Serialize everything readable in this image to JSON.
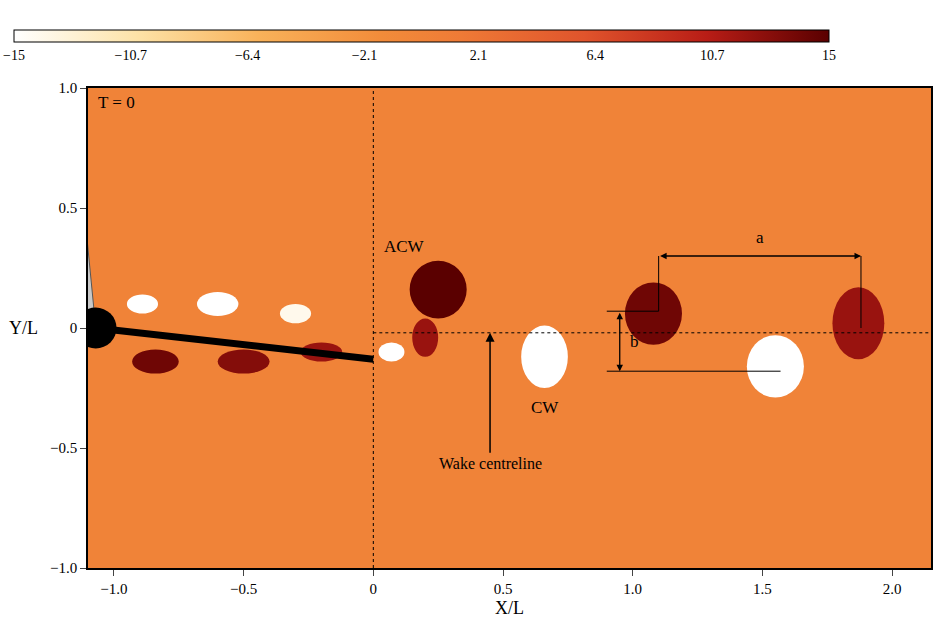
{
  "chart_data": {
    "type": "contour",
    "x_label": "X/L",
    "y_label": "Y/L",
    "xlim": [
      -1.1,
      2.15
    ],
    "ylim": [
      -1,
      1
    ],
    "xticks": [
      {
        "value": -1,
        "label": "−1.0"
      },
      {
        "value": -0.5,
        "label": "−0.5"
      },
      0,
      0.5,
      {
        "value": 1,
        "label": "1.0"
      },
      1.5,
      {
        "value": 2,
        "label": "2.0"
      }
    ],
    "yticks": [
      {
        "value": -1,
        "label": "−1.0"
      },
      {
        "value": -0.5,
        "label": "−0.5"
      },
      0,
      0.5,
      {
        "value": 1,
        "label": "1.0"
      }
    ],
    "colorbar": {
      "range": [
        -15,
        15
      ],
      "ticks": [
        {
          "value": -15,
          "label": "−15"
        },
        {
          "value": -10.7,
          "label": "−10.7"
        },
        {
          "value": -6.4,
          "label": "−6.4"
        },
        {
          "value": -2.1,
          "label": "−2.1"
        },
        2.1,
        6.4,
        10.7,
        15
      ]
    },
    "background_value": 0,
    "vortices": [
      {
        "x": 0.25,
        "y": 0.16,
        "rx": 0.11,
        "ry": 0.12,
        "value": 15
      },
      {
        "x": 0.2,
        "y": -0.04,
        "rx": 0.05,
        "ry": 0.08,
        "value": 12
      },
      {
        "x": 0.66,
        "y": -0.12,
        "rx": 0.09,
        "ry": 0.13,
        "value": -15
      },
      {
        "x": 1.08,
        "y": 0.06,
        "rx": 0.11,
        "ry": 0.13,
        "value": 14
      },
      {
        "x": 1.55,
        "y": -0.16,
        "rx": 0.11,
        "ry": 0.13,
        "value": -15
      },
      {
        "x": 1.87,
        "y": 0.02,
        "rx": 0.1,
        "ry": 0.15,
        "value": 12
      },
      {
        "x": -0.89,
        "y": 0.1,
        "rx": 0.06,
        "ry": 0.04,
        "value": -15
      },
      {
        "x": -0.6,
        "y": 0.1,
        "rx": 0.08,
        "ry": 0.05,
        "value": -15
      },
      {
        "x": -0.3,
        "y": 0.06,
        "rx": 0.06,
        "ry": 0.04,
        "value": -14
      },
      {
        "x": -0.84,
        "y": -0.14,
        "rx": 0.09,
        "ry": 0.05,
        "value": 14
      },
      {
        "x": -0.5,
        "y": -0.14,
        "rx": 0.1,
        "ry": 0.05,
        "value": 13
      },
      {
        "x": -0.2,
        "y": -0.1,
        "rx": 0.08,
        "ry": 0.04,
        "value": 12
      },
      {
        "x": 0.07,
        "y": -0.1,
        "rx": 0.05,
        "ry": 0.04,
        "value": -15
      }
    ],
    "markers": [
      {
        "x": 1.1,
        "y": 0.07
      },
      {
        "x": 1.88,
        "y": 0.0
      },
      {
        "x": 1.57,
        "y": -0.18
      }
    ],
    "reference_lines": {
      "x": 0,
      "y": -0.02
    },
    "body": {
      "pivot": [
        -1.07,
        0.0
      ],
      "pivot_size": [
        0.08,
        0.085
      ],
      "tip": [
        0.0,
        -0.13
      ],
      "swept_edge": [
        -1.12,
        0.55
      ]
    },
    "annotations": [
      {
        "text": "T = 0",
        "x": -1.07,
        "y": 0.94
      },
      {
        "text": "ACW",
        "x": 0.12,
        "y": 0.34
      },
      {
        "text": "CW",
        "x": 0.66,
        "y": -0.33
      }
    ],
    "pointer": {
      "text": "Wake centreline",
      "x": 0.45,
      "y": -0.52,
      "to": [
        0.45,
        -0.02
      ]
    },
    "dimensions": [
      {
        "text": "a",
        "from": [
          1.1,
          0.3
        ],
        "to": [
          1.88,
          0.3
        ]
      },
      {
        "text": "b",
        "from": [
          0.95,
          0.07
        ],
        "to": [
          0.95,
          -0.18
        ]
      }
    ]
  }
}
